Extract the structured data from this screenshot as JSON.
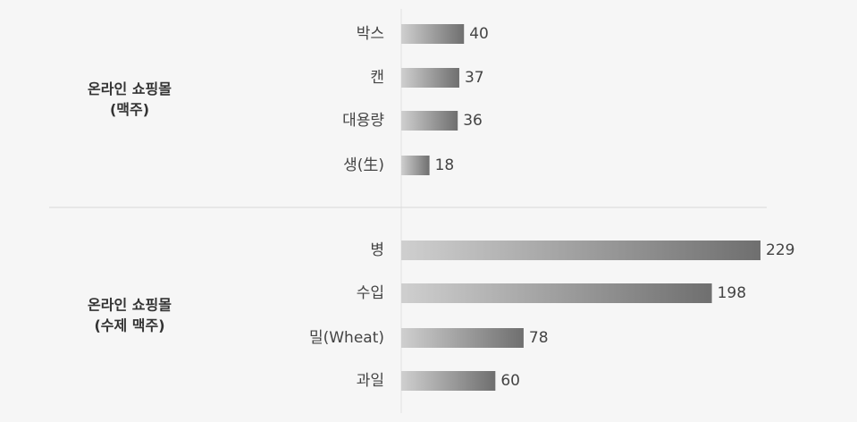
{
  "chart_data": {
    "type": "bar",
    "orientation": "horizontal",
    "groups": [
      {
        "label": [
          "온라인 쇼핑몰",
          "(맥주)"
        ],
        "categories": [
          "박스",
          "캔",
          "대용량",
          "생(生)"
        ],
        "values": [
          40,
          37,
          36,
          18
        ]
      },
      {
        "label": [
          "온라인 쇼핑몰",
          "(수제 맥주)"
        ],
        "categories": [
          "병",
          "수입",
          "밀(Wheat)",
          "과일"
        ],
        "values": [
          229,
          198,
          78,
          60
        ]
      }
    ]
  }
}
